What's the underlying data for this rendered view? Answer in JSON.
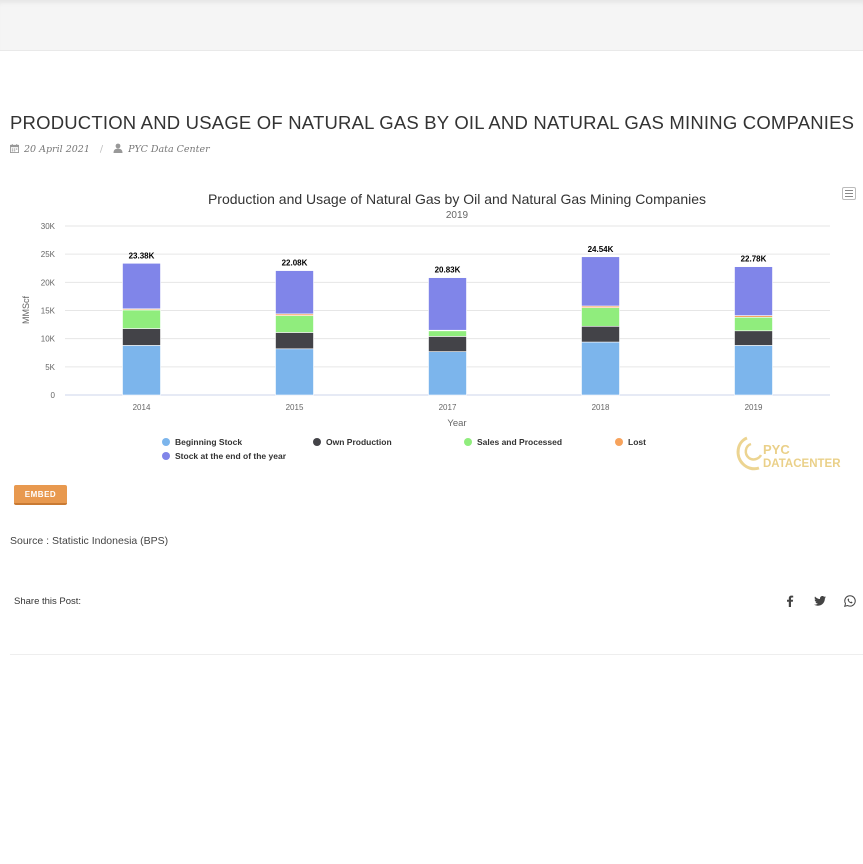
{
  "page": {
    "title": "PRODUCTION AND USAGE OF NATURAL GAS BY OIL AND NATURAL GAS MINING COMPANIES",
    "date": "20 April 2021",
    "author": "PYC Data Center",
    "embed_label": "EMBED",
    "source": "Source : Statistic Indonesia (BPS)",
    "share_label": "Share this Post:",
    "watermark_line1": "PYC",
    "watermark_line2": "DATACENTER"
  },
  "icons": [
    "calendar-icon",
    "user-icon",
    "chart-menu-icon",
    "facebook-icon",
    "twitter-icon",
    "whatsapp-icon"
  ],
  "colors": {
    "accent": "#e8994f",
    "beginning_stock": "#7cb5ec",
    "own_production": "#434348",
    "sales_processed": "#90ed7d",
    "lost": "#f7a35c",
    "stock_end": "#8085e9"
  },
  "chart_data": {
    "type": "bar",
    "stacked": true,
    "title": "Production and Usage of Natural Gas by Oil and Natural Gas Mining Companies",
    "subtitle": "2019",
    "xlabel": "Year",
    "ylabel": "MMScf",
    "ylim": [
      0,
      30000
    ],
    "yticks": [
      0,
      5000,
      10000,
      15000,
      20000,
      25000,
      30000
    ],
    "ytick_labels": [
      "0",
      "5K",
      "10K",
      "15K",
      "20K",
      "25K",
      "30K"
    ],
    "grid": true,
    "legend": "bottom",
    "categories": [
      "2014",
      "2015",
      "2017",
      "2018",
      "2019"
    ],
    "totals_labels": [
      "23.38K",
      "22.08K",
      "20.83K",
      "24.54K",
      "22.78K"
    ],
    "totals": [
      23380,
      22080,
      20830,
      24540,
      22780
    ],
    "series": [
      {
        "name": "Beginning Stock",
        "color": "#7cb5ec",
        "values": [
          8800,
          8200,
          7700,
          9400,
          8800
        ]
      },
      {
        "name": "Own Production",
        "color": "#434348",
        "values": [
          3000,
          2900,
          2700,
          2800,
          2600
        ]
      },
      {
        "name": "Sales and Processed",
        "color": "#90ed7d",
        "values": [
          3300,
          3000,
          1000,
          3300,
          2400
        ]
      },
      {
        "name": "Lost",
        "color": "#f7a35c",
        "values": [
          200,
          300,
          100,
          300,
          300
        ]
      },
      {
        "name": "Stock at the end of the year",
        "color": "#8085e9",
        "values": [
          8080,
          7680,
          9330,
          8740,
          8680
        ]
      }
    ]
  }
}
